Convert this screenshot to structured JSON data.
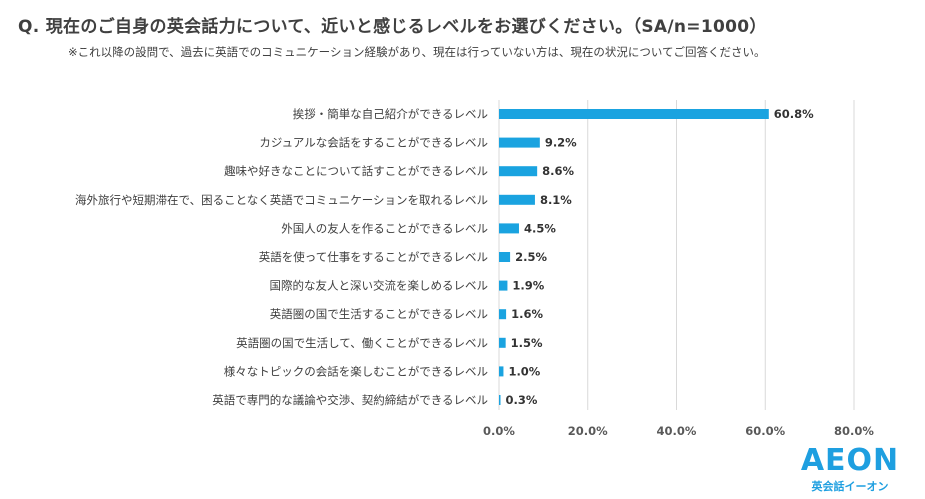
{
  "header": {
    "title": "Q. 現在のご自身の英会話力について、近いと感じるレベルをお選びください。（SA/n=1000）",
    "note": "※これ以降の設問で、過去に英語でのコミュニケーション経験があり、現在は行っていない方は、現在の状況についてご回答ください。"
  },
  "brand": {
    "logo": "AEON",
    "subtitle": "英会話イーオン",
    "color": "#1e9fe0"
  },
  "colors": {
    "bar": "#1aa3e0",
    "highlight_label": "#e02020",
    "grid": "#d9d9d9"
  },
  "chart_data": {
    "type": "bar",
    "orientation": "horizontal",
    "categories": [
      "挨拶・簡単な自己紹介ができるレベル",
      "カジュアルな会話をすることができるレベル",
      "趣味や好きなことについて話すことができるレベル",
      "海外旅行や短期滞在で、困ることなく英語でコミュニケーションを取れるレベル",
      "外国人の友人を作ることができるレベル",
      "英語を使って仕事をすることができるレベル",
      "国際的な友人と深い交流を楽しめるレベル",
      "英語圏の国で生活することができるレベル",
      "英語圏の国で生活して、働くことができるレベル",
      "様々なトピックの会話を楽しむことができるレベル",
      "英語で専門的な議論や交渉、契約締結ができるレベル"
    ],
    "values": [
      60.8,
      9.2,
      8.6,
      8.1,
      4.5,
      2.5,
      1.9,
      1.6,
      1.5,
      1.0,
      0.3
    ],
    "value_labels": [
      "60.8%",
      "9.2%",
      "8.6%",
      "8.1%",
      "4.5%",
      "2.5%",
      "1.9%",
      "1.6%",
      "1.5%",
      "1.0%",
      "0.3%"
    ],
    "highlight_index": 0,
    "xlim": [
      0,
      80
    ],
    "xticks": [
      "0.0%",
      "20.0%",
      "40.0%",
      "60.0%",
      "80.0%"
    ],
    "grid": true
  }
}
